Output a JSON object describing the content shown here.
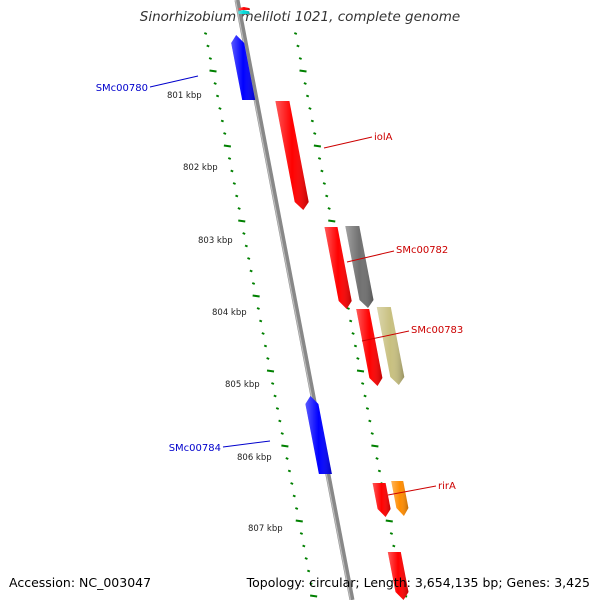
{
  "title": "Sinorhizobium meliloti 1021, complete genome",
  "footer": {
    "accession": "Accession: NC_003047",
    "summary": "Topology: circular; Length: 3,654,135 bp; Genes: 3,425"
  },
  "ruler": {
    "labels": [
      "801 kbp",
      "802 kbp",
      "803 kbp",
      "804 kbp",
      "805 kbp",
      "806 kbp",
      "807 kbp"
    ],
    "label_color": "#222222",
    "tick_color": "#008000"
  },
  "backbone_color": "#888888",
  "genes": [
    {
      "name": "",
      "strand": "reverse",
      "color": "#00d8d8"
    },
    {
      "name": "",
      "strand": "forward",
      "color": "#ff0000"
    },
    {
      "name": "SMc00780",
      "strand": "reverse",
      "color": "#0000ff",
      "label_color": "#0000cc"
    },
    {
      "name": "iolA",
      "strand": "forward",
      "color": "#ff0000",
      "label_color": "#cc0000"
    },
    {
      "name": "",
      "strand": "forward",
      "color": "#ff0000"
    },
    {
      "name": "SMc00782",
      "strand": "forward",
      "color": "#707070",
      "label_color": "#cc0000"
    },
    {
      "name": "",
      "strand": "forward",
      "color": "#ff0000"
    },
    {
      "name": "SMc00783",
      "strand": "forward",
      "color": "#c8c080",
      "label_color": "#cc0000"
    },
    {
      "name": "SMc00784",
      "strand": "reverse",
      "color": "#0000ff",
      "label_color": "#0000cc"
    },
    {
      "name": "",
      "strand": "forward",
      "color": "#ff0000"
    },
    {
      "name": "rirA",
      "strand": "forward",
      "color": "#ff8c00",
      "label_color": "#cc0000"
    },
    {
      "name": "",
      "strand": "forward",
      "color": "#ff0000"
    }
  ]
}
